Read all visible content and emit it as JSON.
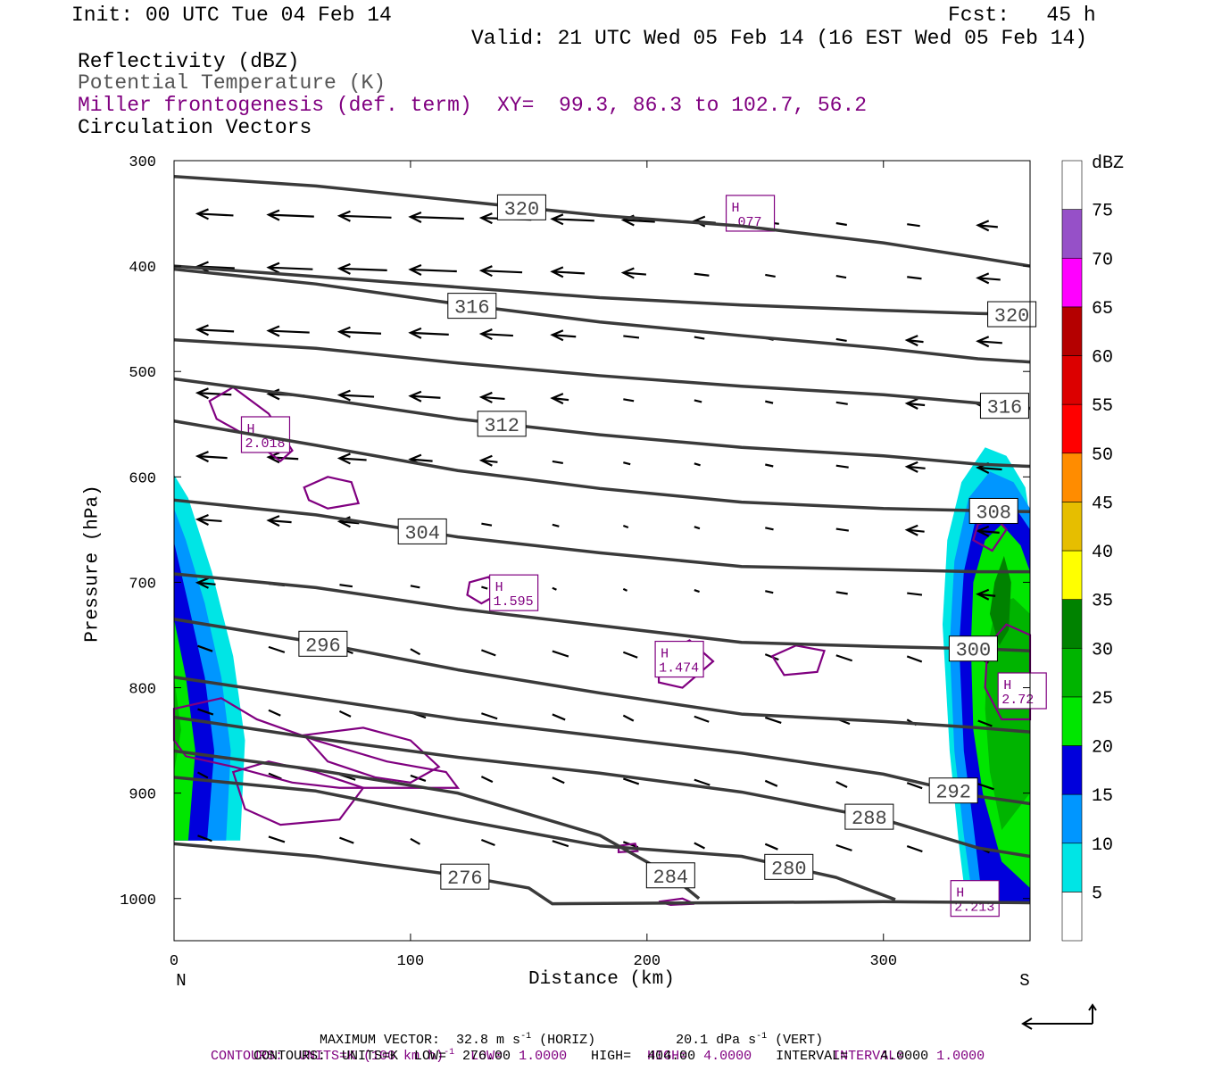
{
  "header": {
    "init": "Init: 00 UTC Tue 04 Feb 14",
    "fcst": "Fcst:   45 h",
    "valid": "Valid: 21 UTC Wed 05 Feb 14 (16 EST Wed 05 Feb 14)"
  },
  "legend": {
    "reflectivity": "Reflectivity (dBZ)",
    "theta": "Potential Temperature (K)",
    "miller": "Miller frontogenesis (def. term)",
    "xy": "XY=  99.3, 86.3 to 102.7, 56.2",
    "circulation": "Circulation Vectors"
  },
  "colors": {
    "miller": "#800080",
    "theta": "#3a3a3a",
    "reflectivity_scale": [
      "#ffffff",
      "#00e5e5",
      "#0096ff",
      "#0000dc",
      "#00e600",
      "#00b400",
      "#008200",
      "#ffff00",
      "#e6be00",
      "#ff8c00",
      "#ff0000",
      "#dc0000",
      "#b40000",
      "#ff00ff",
      "#9650c8",
      "#ffffff"
    ]
  },
  "bottom": {
    "max_vector": "MAXIMUM VECTOR:  32.8 m s",
    "max_vector_exp": "-1",
    "max_vector_rest": " (HORIZ)          20.1 dPa s",
    "max_vector_exp2": "-1",
    "max_vector_rest2": " (VERT)",
    "miller_contours_a": "CONTOURS:  UNITS=K (100 km h)",
    "miller_contours_exp": "-1",
    "miller_contours_b": "  LOW=  1.0000          HIGH=  4.0000          INTERVAL=    1.0000",
    "theta_contours": "CONTOURS:  UNITS=K  LOW=  276.00          HIGH=  404.00          INTERVAL=    4.0000"
  },
  "chart_data": {
    "type": "cross-section",
    "xlabel": "Distance (km)",
    "ylabel": "Pressure (hPa)",
    "xlim": [
      0,
      362
    ],
    "ylim": [
      1040,
      300
    ],
    "x_ticks": [
      "0",
      "100",
      "200",
      "300"
    ],
    "y_ticks": [
      "300",
      "400",
      "500",
      "600",
      "700",
      "800",
      "900",
      "1000"
    ],
    "x_end_labels": {
      "left": "N",
      "right": "S"
    },
    "colorbar": {
      "unit": "dBZ",
      "levels": [
        "5",
        "10",
        "15",
        "20",
        "25",
        "30",
        "35",
        "40",
        "45",
        "50",
        "55",
        "60",
        "65",
        "70",
        "75"
      ]
    },
    "theta_contours": [
      {
        "label": "320",
        "points": [
          [
            0,
            315
          ],
          [
            60,
            324
          ],
          [
            120,
            338
          ],
          [
            180,
            352
          ],
          [
            240,
            362
          ],
          [
            300,
            378
          ],
          [
            340,
            392
          ],
          [
            362,
            400
          ]
        ]
      },
      {
        "label": "320",
        "points": [
          [
            0,
            400
          ],
          [
            60,
            410
          ],
          [
            120,
            420
          ],
          [
            180,
            430
          ],
          [
            240,
            437
          ],
          [
            300,
            442
          ],
          [
            340,
            445
          ],
          [
            362,
            446
          ]
        ]
      },
      {
        "label": "316",
        "points": [
          [
            0,
            403
          ],
          [
            60,
            417
          ],
          [
            120,
            436
          ],
          [
            180,
            453
          ],
          [
            240,
            466
          ],
          [
            300,
            478
          ],
          [
            340,
            488
          ],
          [
            362,
            491
          ]
        ]
      },
      {
        "label": "316",
        "points": [
          [
            0,
            470
          ],
          [
            60,
            478
          ],
          [
            120,
            492
          ],
          [
            180,
            504
          ],
          [
            240,
            514
          ],
          [
            300,
            522
          ],
          [
            340,
            530
          ],
          [
            362,
            535
          ]
        ]
      },
      {
        "label": "312",
        "points": [
          [
            0,
            507
          ],
          [
            60,
            525
          ],
          [
            120,
            545
          ],
          [
            180,
            560
          ],
          [
            240,
            572
          ],
          [
            300,
            580
          ],
          [
            340,
            588
          ],
          [
            362,
            590
          ]
        ]
      },
      {
        "label": "308",
        "points": [
          [
            0,
            547
          ],
          [
            60,
            570
          ],
          [
            120,
            594
          ],
          [
            180,
            611
          ],
          [
            240,
            624
          ],
          [
            300,
            630
          ],
          [
            340,
            632
          ],
          [
            362,
            633
          ]
        ]
      },
      {
        "label": "304",
        "points": [
          [
            0,
            622
          ],
          [
            60,
            636
          ],
          [
            120,
            657
          ],
          [
            180,
            672
          ],
          [
            240,
            685
          ],
          [
            300,
            688
          ],
          [
            340,
            690
          ],
          [
            362,
            690
          ]
        ]
      },
      {
        "label": "300",
        "points": [
          [
            0,
            692
          ],
          [
            60,
            705
          ],
          [
            120,
            725
          ],
          [
            180,
            741
          ],
          [
            240,
            757
          ],
          [
            300,
            761
          ],
          [
            340,
            763
          ],
          [
            362,
            765
          ]
        ]
      },
      {
        "label": "296",
        "points": [
          [
            0,
            735
          ],
          [
            60,
            757
          ],
          [
            120,
            783
          ],
          [
            180,
            805
          ],
          [
            240,
            825
          ],
          [
            300,
            832
          ],
          [
            340,
            838
          ],
          [
            362,
            842
          ]
        ]
      },
      {
        "label": "292",
        "points": [
          [
            0,
            790
          ],
          [
            60,
            810
          ],
          [
            120,
            830
          ],
          [
            180,
            846
          ],
          [
            240,
            862
          ],
          [
            300,
            882
          ],
          [
            340,
            903
          ],
          [
            362,
            910
          ]
        ]
      },
      {
        "label": "288",
        "points": [
          [
            0,
            828
          ],
          [
            60,
            848
          ],
          [
            120,
            866
          ],
          [
            180,
            881
          ],
          [
            240,
            899
          ],
          [
            300,
            925
          ],
          [
            340,
            952
          ],
          [
            362,
            960
          ]
        ]
      },
      {
        "label": "284",
        "points": [
          [
            0,
            860
          ],
          [
            60,
            878
          ],
          [
            120,
            900
          ],
          [
            180,
            940
          ],
          [
            210,
            978
          ],
          [
            222,
            1000
          ]
        ]
      },
      {
        "label": "280",
        "points": [
          [
            0,
            885
          ],
          [
            60,
            898
          ],
          [
            120,
            925
          ],
          [
            180,
            950
          ],
          [
            240,
            960
          ],
          [
            280,
            980
          ],
          [
            305,
            1001
          ]
        ]
      },
      {
        "label": "276",
        "points": [
          [
            0,
            948
          ],
          [
            60,
            960
          ],
          [
            120,
            978
          ],
          [
            150,
            990
          ],
          [
            160,
            1005
          ],
          [
            300,
            1003
          ],
          [
            362,
            1004
          ]
        ]
      }
    ],
    "miller_maxima": [
      {
        "label": "H",
        "value": ".077"
      },
      {
        "label": "H",
        "value": "2.018"
      },
      {
        "label": "H",
        "value": "1.595"
      },
      {
        "label": "H",
        "value": "1.474"
      },
      {
        "label": "H",
        "value": "2.72"
      },
      {
        "label": "H",
        "value": "2.213"
      }
    ],
    "vector_rows_hPa": [
      350,
      400,
      460,
      520,
      580,
      640,
      700,
      760,
      820,
      880,
      940
    ],
    "max_vector": {
      "horiz_m_s": 32.8,
      "vert_dPa_s": 20.1
    }
  }
}
